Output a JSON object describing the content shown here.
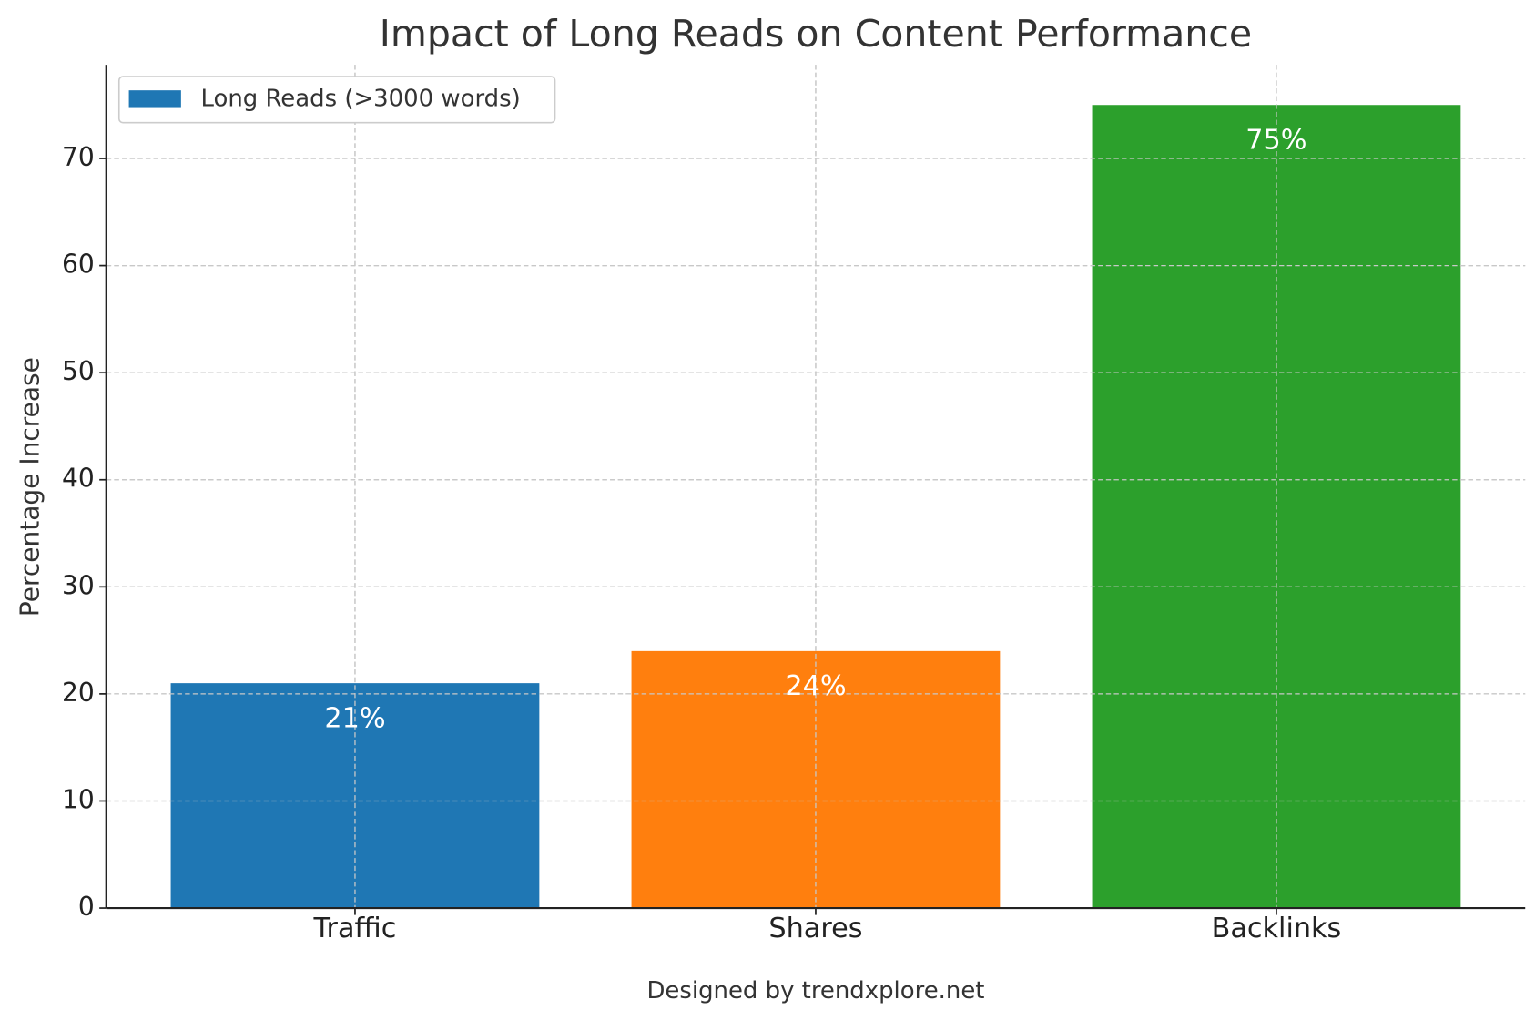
{
  "chart_data": {
    "type": "bar",
    "title": "Impact of Long Reads on Content Performance",
    "ylabel": "Percentage Increase",
    "footer": "Designed by trendxplore.net",
    "categories": [
      "Traffic",
      "Shares",
      "Backlinks"
    ],
    "series": [
      {
        "name": "Long Reads (>3000 words)",
        "colors": [
          "#1f77b4",
          "#ff7f0e",
          "#2ca02c"
        ],
        "values": [
          21,
          24,
          75
        ],
        "value_labels": [
          "21%",
          "24%",
          "75%"
        ]
      }
    ],
    "ylim": [
      0,
      78.75
    ],
    "yticks": [
      0,
      10,
      20,
      30,
      40,
      50,
      60,
      70
    ],
    "grid": true,
    "legend": "upper left"
  }
}
